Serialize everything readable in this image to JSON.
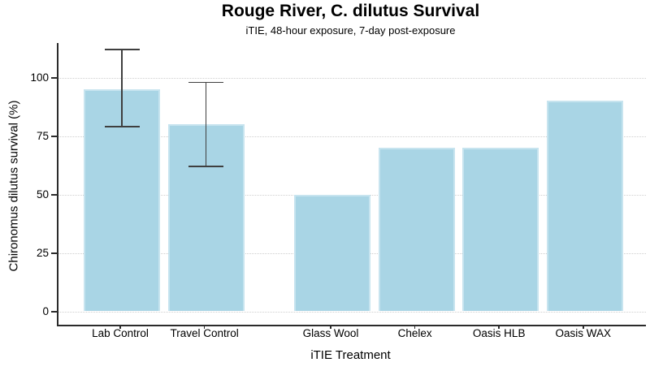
{
  "chart_data": {
    "type": "bar",
    "title": "Rouge River, C. dilutus Survival",
    "subtitle": "iTIE, 48-hour exposure, 7-day post-exposure",
    "xlabel": "iTIE Treatment",
    "ylabel": "Chironomus dilutus survival (%)",
    "ylim": [
      0,
      100
    ],
    "yticks": [
      0,
      25,
      50,
      75,
      100
    ],
    "grid": "horizontal-dotted",
    "legend": "none",
    "categories": [
      "Lab Control",
      "Travel Control",
      "Glass Wool",
      "Chelex",
      "Oasis HLB",
      "Oasis WAX"
    ],
    "values": [
      95,
      80,
      50,
      70,
      70,
      90
    ],
    "bars": [
      {
        "label": "Lab Control",
        "value": 95,
        "error_low": 79,
        "error_high": 112,
        "slot": 0
      },
      {
        "label": "Travel Control",
        "value": 80,
        "error_low": 62,
        "error_high": 98,
        "slot": 1
      },
      {
        "label": "Glass Wool",
        "value": 50,
        "slot": 2.5
      },
      {
        "label": "Chelex",
        "value": 70,
        "slot": 3.5
      },
      {
        "label": "Oasis HLB",
        "value": 70,
        "slot": 4.5
      },
      {
        "label": "Oasis WAX",
        "value": 90,
        "slot": 5.5
      }
    ],
    "colors": {
      "bar_fill": "#A9D5E5",
      "bar_border": "#C7E4EF",
      "error_bar": "#3F3F3F",
      "gridline": "#CFCFCF",
      "axis_line": "#2B2B2B",
      "text": "#000000"
    }
  }
}
